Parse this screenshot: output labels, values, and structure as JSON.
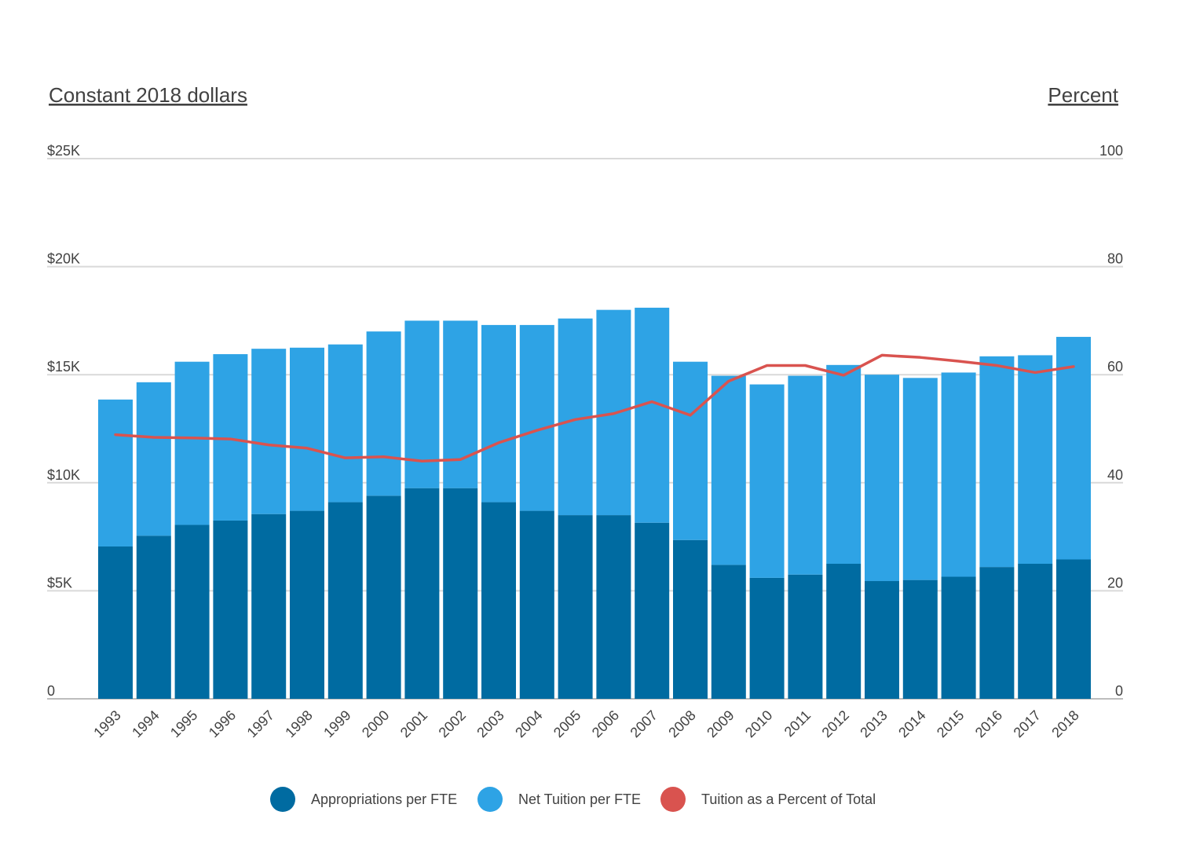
{
  "chart_data": {
    "type": "bar",
    "stacked": true,
    "left_axis_title": "Constant 2018 dollars",
    "right_axis_title": "Percent",
    "left_ylim": [
      0,
      25000
    ],
    "right_ylim": [
      0,
      100
    ],
    "left_ticks": [
      {
        "value": 0,
        "label": "0"
      },
      {
        "value": 5000,
        "label": "$5K"
      },
      {
        "value": 10000,
        "label": "$10K"
      },
      {
        "value": 15000,
        "label": "$15K"
      },
      {
        "value": 20000,
        "label": "$20K"
      },
      {
        "value": 25000,
        "label": "$25K"
      }
    ],
    "right_ticks": [
      {
        "value": 0,
        "label": "0"
      },
      {
        "value": 20,
        "label": "20"
      },
      {
        "value": 40,
        "label": "40"
      },
      {
        "value": 60,
        "label": "60"
      },
      {
        "value": 80,
        "label": "80"
      },
      {
        "value": 100,
        "label": "100"
      }
    ],
    "grid": true,
    "legend_position": "bottom",
    "categories": [
      "1993",
      "1994",
      "1995",
      "1996",
      "1997",
      "1998",
      "1999",
      "2000",
      "2001",
      "2002",
      "2003",
      "2004",
      "2005",
      "2006",
      "2007",
      "2008",
      "2009",
      "2010",
      "2011",
      "2012",
      "2013",
      "2014",
      "2015",
      "2016",
      "2017",
      "2018"
    ],
    "series": [
      {
        "name": "Appropriations per FTE",
        "type": "bar",
        "axis": "left",
        "color": "#006BA1",
        "values": [
          7050,
          7550,
          8050,
          8250,
          8550,
          8700,
          9100,
          9400,
          9750,
          9750,
          9100,
          8700,
          8500,
          8500,
          8150,
          7350,
          6200,
          5600,
          5750,
          6250,
          5450,
          5500,
          5650,
          6100,
          6250,
          6450
        ]
      },
      {
        "name": "Net Tuition per FTE",
        "type": "bar",
        "axis": "left",
        "color": "#2EA3E5",
        "values": [
          6800,
          7100,
          7550,
          7700,
          7650,
          7550,
          7300,
          7600,
          7750,
          7750,
          8200,
          8600,
          9100,
          9500,
          9950,
          8250,
          8750,
          8950,
          9200,
          9200,
          9550,
          9350,
          9450,
          9750,
          9650,
          10300
        ]
      },
      {
        "name": "Tuition as a Percent of Total",
        "type": "line",
        "axis": "right",
        "color": "#D9534F",
        "values": [
          48.9,
          48.4,
          48.3,
          48.1,
          47.0,
          46.4,
          44.6,
          44.8,
          44.0,
          44.3,
          47.4,
          49.7,
          51.7,
          52.8,
          55.0,
          52.5,
          58.8,
          61.7,
          61.7,
          59.9,
          63.6,
          63.2,
          62.5,
          61.7,
          60.4,
          61.5
        ]
      }
    ]
  }
}
